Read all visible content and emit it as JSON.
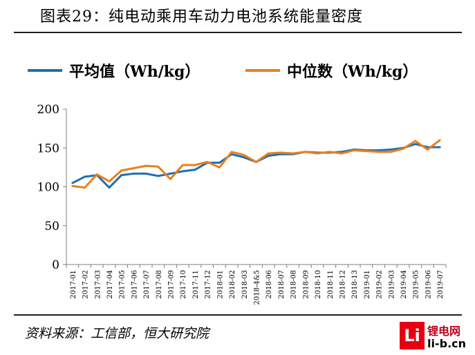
{
  "figure": {
    "title": "图表29：纯电动乘用车动力电池系统能量密度",
    "source": "资料来源：工信部，恒大研究院",
    "watermark": {
      "logo": "Li",
      "name": "锂电网",
      "url": "li-b.cn"
    }
  },
  "chart_data": {
    "type": "line",
    "title": "",
    "xlabel": "",
    "ylabel": "",
    "ylim": [
      0,
      200
    ],
    "yticks": [
      0,
      50,
      100,
      150,
      200
    ],
    "grid": false,
    "legend_position": "top",
    "x": [
      "2017-01",
      "2017-02",
      "2017-03",
      "2017-04",
      "2017-05",
      "2017-06",
      "2017-07",
      "2017-08",
      "2017-09",
      "2017-10",
      "2017-11",
      "2017-12",
      "2018-01",
      "2018-02",
      "2018-03",
      "2018-4&5",
      "2018-06",
      "2018-07",
      "2018-08",
      "2018-09",
      "2018-10",
      "2018-11",
      "2018-12",
      "2018-13",
      "2019-01",
      "2019-02",
      "2019-03",
      "2019-04",
      "2019-05",
      "2019-06",
      "2019-07"
    ],
    "series": [
      {
        "name": "平均值（Wh/kg）",
        "color": "#1f6fb4",
        "values": [
          105,
          113,
          115,
          99,
          115,
          117,
          117,
          114,
          117,
          120,
          122,
          131,
          131,
          142,
          138,
          132,
          140,
          142,
          142,
          145,
          144,
          144,
          145,
          148,
          147,
          147,
          148,
          150,
          155,
          151,
          151
        ]
      },
      {
        "name": "中位数（Wh/kg）",
        "color": "#e8801e",
        "values": [
          101,
          99,
          116,
          107,
          121,
          124,
          127,
          126,
          110,
          128,
          128,
          132,
          125,
          145,
          141,
          132,
          143,
          144,
          143,
          145,
          143,
          145,
          143,
          147,
          146,
          145,
          145,
          149,
          159,
          148,
          160
        ]
      }
    ]
  }
}
